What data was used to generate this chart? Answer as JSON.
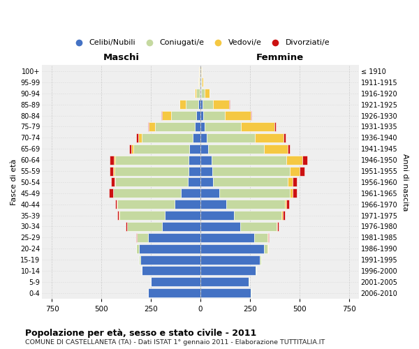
{
  "age_groups": [
    "0-4",
    "5-9",
    "10-14",
    "15-19",
    "20-24",
    "25-29",
    "30-34",
    "35-39",
    "40-44",
    "45-49",
    "50-54",
    "55-59",
    "60-64",
    "65-69",
    "70-74",
    "75-79",
    "80-84",
    "85-89",
    "90-94",
    "95-99",
    "100+"
  ],
  "birth_years": [
    "2006-2010",
    "2001-2005",
    "1996-2000",
    "1991-1995",
    "1986-1990",
    "1981-1985",
    "1976-1980",
    "1971-1975",
    "1966-1970",
    "1961-1965",
    "1956-1960",
    "1951-1955",
    "1946-1950",
    "1941-1945",
    "1936-1940",
    "1931-1935",
    "1926-1930",
    "1921-1925",
    "1916-1920",
    "1911-1915",
    "≤ 1910"
  ],
  "male": {
    "celibi": [
      265,
      250,
      295,
      305,
      310,
      265,
      195,
      180,
      130,
      100,
      65,
      60,
      60,
      55,
      40,
      30,
      20,
      10,
      5,
      2,
      2
    ],
    "coniugati": [
      1,
      1,
      2,
      5,
      15,
      55,
      175,
      230,
      290,
      340,
      365,
      375,
      370,
      285,
      255,
      200,
      130,
      65,
      15,
      5,
      3
    ],
    "vedovi": [
      0,
      0,
      0,
      0,
      0,
      1,
      1,
      2,
      2,
      3,
      3,
      5,
      8,
      10,
      20,
      30,
      45,
      30,
      10,
      3,
      1
    ],
    "divorziati": [
      0,
      0,
      0,
      0,
      1,
      3,
      5,
      8,
      10,
      20,
      18,
      20,
      20,
      10,
      10,
      5,
      3,
      0,
      0,
      0,
      0
    ]
  },
  "female": {
    "nubili": [
      255,
      245,
      280,
      300,
      320,
      270,
      200,
      170,
      130,
      95,
      65,
      60,
      55,
      40,
      30,
      20,
      15,
      10,
      5,
      2,
      2
    ],
    "coniugate": [
      1,
      1,
      3,
      8,
      20,
      70,
      185,
      240,
      295,
      355,
      375,
      390,
      380,
      280,
      245,
      185,
      110,
      55,
      15,
      5,
      3
    ],
    "vedove": [
      0,
      0,
      0,
      0,
      1,
      2,
      3,
      6,
      10,
      15,
      25,
      50,
      80,
      120,
      145,
      170,
      130,
      80,
      25,
      8,
      3
    ],
    "divorziate": [
      0,
      0,
      0,
      0,
      1,
      3,
      6,
      10,
      12,
      22,
      22,
      25,
      25,
      12,
      10,
      6,
      4,
      2,
      0,
      0,
      0
    ]
  },
  "colors": {
    "celibi_nubili": "#4472C4",
    "coniugati": "#C5D9A0",
    "vedovi": "#F5C842",
    "divorziati": "#CC1111"
  },
  "title": "Popolazione per età, sesso e stato civile - 2011",
  "subtitle": "COMUNE DI CASTELLANETA (TA) - Dati ISTAT 1° gennaio 2011 - Elaborazione TUTTITALIA.IT",
  "xlabel_left": "Maschi",
  "xlabel_right": "Femmine",
  "ylabel_left": "Fasce di età",
  "ylabel_right": "Anni di nascita",
  "xlim": 800,
  "background_color": "#efefef",
  "fig_background": "#ffffff",
  "xticks": [
    -750,
    -500,
    -250,
    0,
    250,
    500,
    750
  ]
}
